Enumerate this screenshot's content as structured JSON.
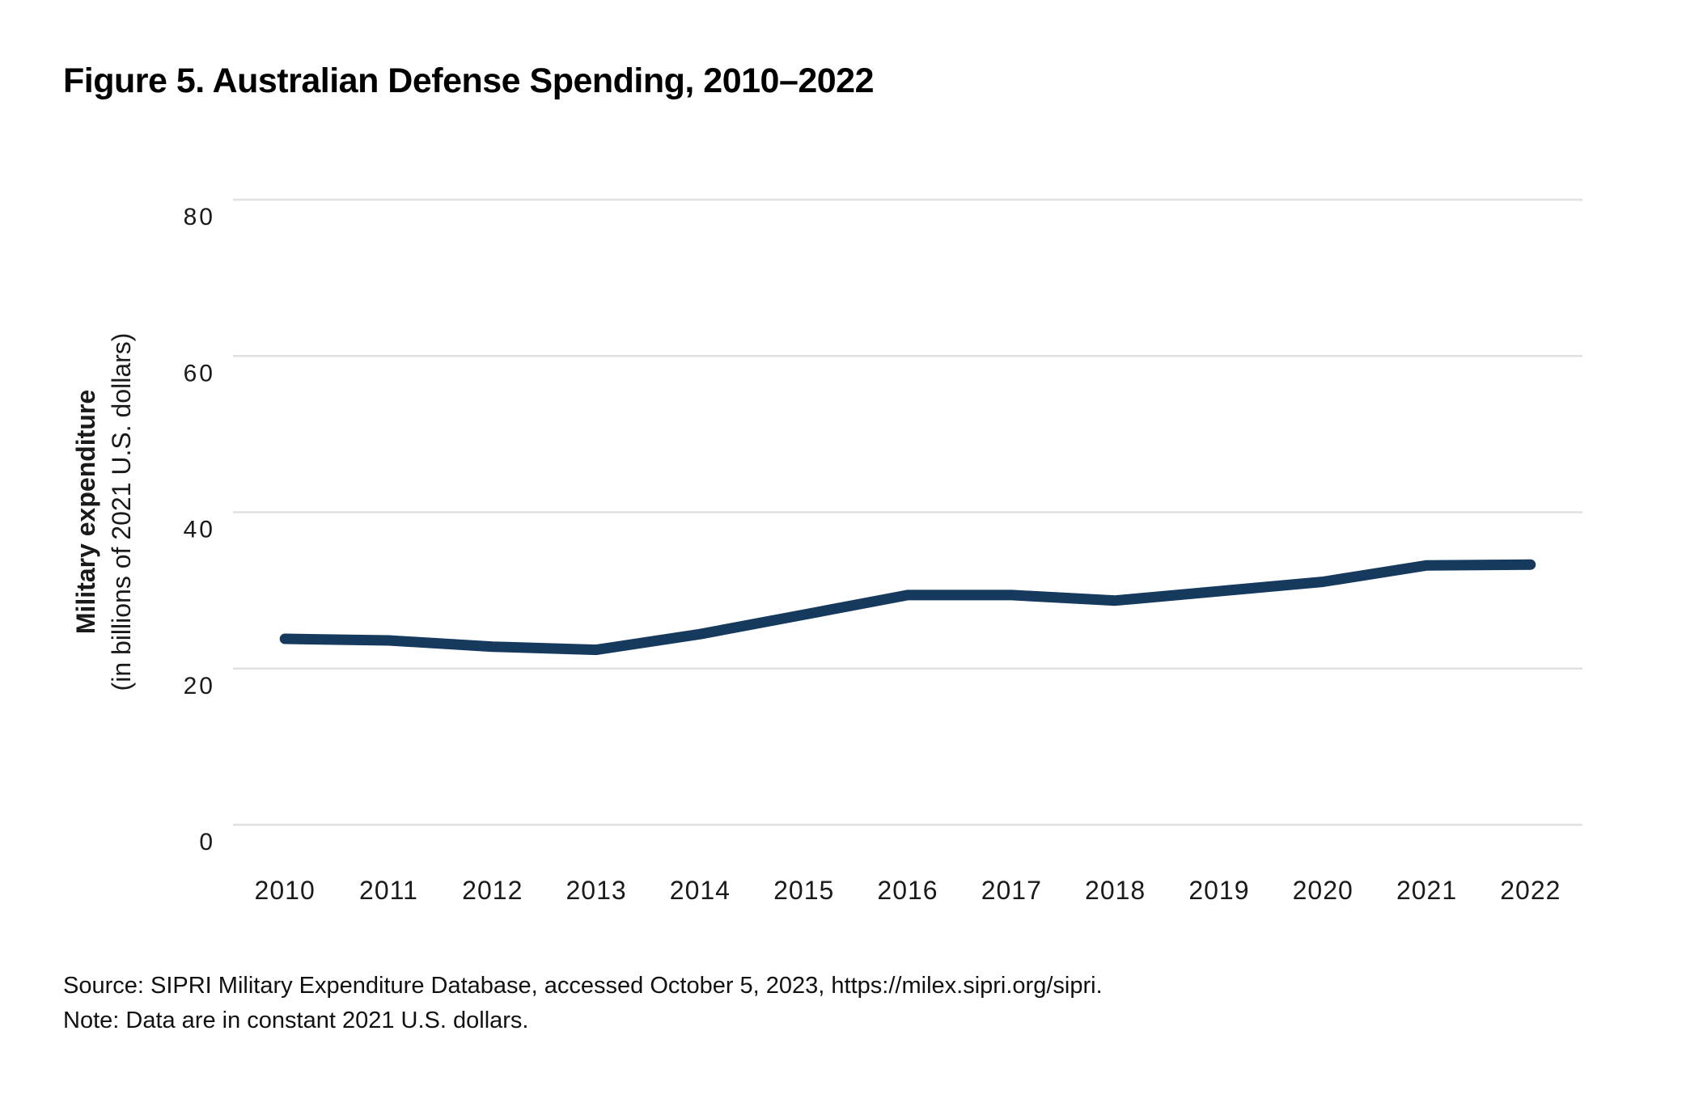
{
  "figure": {
    "title": "Figure 5. Australian Defense Spending, 2010–2022",
    "source": "Source: SIPRI Military Expenditure Database, accessed October 5, 2023, https://milex.sipri.org/sipri.",
    "note": "Note: Data are in constant 2021 U.S. dollars."
  },
  "chart_data": {
    "type": "line",
    "title": "Figure 5. Australian Defense Spending, 2010–2022",
    "x": [
      "2010",
      "2011",
      "2012",
      "2013",
      "2014",
      "2015",
      "2016",
      "2017",
      "2018",
      "2019",
      "2020",
      "2021",
      "2022"
    ],
    "series": [
      {
        "name": "Australian military expenditure",
        "values": [
          23.8,
          23.6,
          22.8,
          22.4,
          24.4,
          26.9,
          29.4,
          29.4,
          28.7,
          29.9,
          31.1,
          33.2,
          33.3
        ]
      }
    ],
    "xlabel": "",
    "ylabel": "Military expenditure",
    "ylabel_sub": "(in billions of 2021 U.S. dollars)",
    "yticks": [
      0,
      20,
      40,
      60,
      80
    ],
    "ylim": [
      0,
      80
    ],
    "grid": "horizontal gridlines at y ticks",
    "legend": "none",
    "line_color": "#163a5e",
    "grid_color": "#e0e0e0",
    "text_color": "#1a1a1a"
  }
}
